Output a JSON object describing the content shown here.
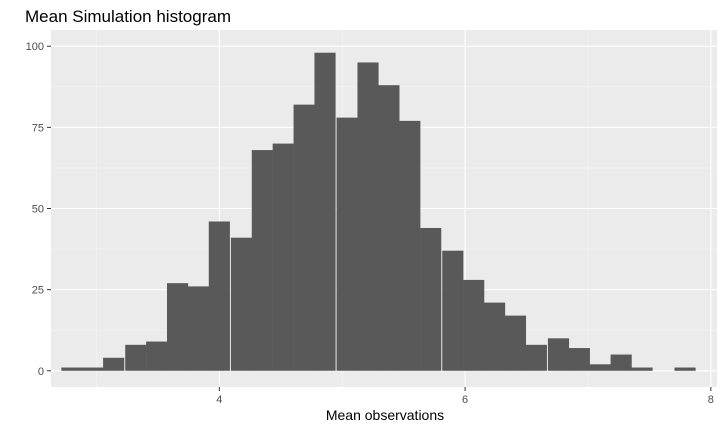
{
  "chart_data": {
    "type": "bar",
    "title": "Mean Simulation histogram",
    "xlabel": "Mean observations",
    "ylabel": "",
    "bin_width": 0.172,
    "bins": [
      {
        "x": 2.8,
        "count": 1
      },
      {
        "x": 2.97,
        "count": 1
      },
      {
        "x": 3.14,
        "count": 4
      },
      {
        "x": 3.32,
        "count": 8
      },
      {
        "x": 3.49,
        "count": 9
      },
      {
        "x": 3.66,
        "count": 27
      },
      {
        "x": 3.83,
        "count": 26
      },
      {
        "x": 4.0,
        "count": 46
      },
      {
        "x": 4.18,
        "count": 41
      },
      {
        "x": 4.35,
        "count": 68
      },
      {
        "x": 4.52,
        "count": 70
      },
      {
        "x": 4.69,
        "count": 82
      },
      {
        "x": 4.86,
        "count": 98
      },
      {
        "x": 5.04,
        "count": 78
      },
      {
        "x": 5.21,
        "count": 95
      },
      {
        "x": 5.38,
        "count": 88
      },
      {
        "x": 5.55,
        "count": 77
      },
      {
        "x": 5.72,
        "count": 44
      },
      {
        "x": 5.9,
        "count": 37
      },
      {
        "x": 6.07,
        "count": 28
      },
      {
        "x": 6.24,
        "count": 21
      },
      {
        "x": 6.41,
        "count": 17
      },
      {
        "x": 6.58,
        "count": 8
      },
      {
        "x": 6.76,
        "count": 10
      },
      {
        "x": 6.93,
        "count": 7
      },
      {
        "x": 7.1,
        "count": 2
      },
      {
        "x": 7.27,
        "count": 5
      },
      {
        "x": 7.44,
        "count": 1
      },
      {
        "x": 7.62,
        "count": 0
      },
      {
        "x": 7.79,
        "count": 1
      }
    ],
    "xlim": [
      2.63,
      8.05
    ],
    "ylim": [
      -5,
      105
    ],
    "xticks": [
      4,
      6,
      8
    ],
    "yticks": [
      0,
      25,
      50,
      75,
      100
    ],
    "grid": true,
    "colors": {
      "bar": "#595959",
      "panel": "#ebebeb",
      "grid_major": "#ffffff",
      "grid_minor": "#f5f5f5",
      "tick_label": "#4d4d4d",
      "tick_mark": "#333333"
    }
  }
}
